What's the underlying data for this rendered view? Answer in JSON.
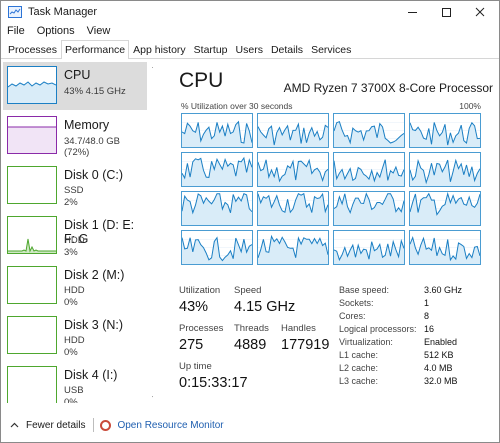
{
  "window": {
    "title": "Task Manager"
  },
  "menu": [
    "File",
    "Options",
    "View"
  ],
  "tabs": [
    "Processes",
    "Performance",
    "App history",
    "Startup",
    "Users",
    "Details",
    "Services"
  ],
  "active_tab": "Performance",
  "sidebar": {
    "items": [
      {
        "name": "CPU",
        "sub1": "43%  4.15 GHz",
        "sub2": "",
        "selected": true,
        "color": "#1b7fc4"
      },
      {
        "name": "Memory",
        "sub1": "34.7/48.0 GB (72%)",
        "sub2": "",
        "selected": false,
        "color": "#8a2aa8"
      },
      {
        "name": "Disk 0 (C:)",
        "sub1": "SSD",
        "sub2": "2%",
        "selected": false,
        "color": "#4ea72e"
      },
      {
        "name": "Disk 1 (D: E: F: G",
        "sub1": "HDD",
        "sub2": "3%",
        "selected": false,
        "color": "#4ea72e"
      },
      {
        "name": "Disk 2 (M:)",
        "sub1": "HDD",
        "sub2": "0%",
        "selected": false,
        "color": "#4ea72e"
      },
      {
        "name": "Disk 3 (N:)",
        "sub1": "HDD",
        "sub2": "0%",
        "selected": false,
        "color": "#4ea72e"
      },
      {
        "name": "Disk 4 (I:)",
        "sub1": "USB",
        "sub2": "0%",
        "selected": false,
        "color": "#4ea72e"
      }
    ]
  },
  "main": {
    "title": "CPU",
    "processor": "AMD Ryzen 7 3700X 8-Core Processor",
    "util_label": "% Utilization over 30 seconds",
    "util_max": "100%",
    "stats": {
      "utilization_label": "Utilization",
      "utilization": "43%",
      "speed_label": "Speed",
      "speed": "4.15 GHz",
      "processes_label": "Processes",
      "processes": "275",
      "threads_label": "Threads",
      "threads": "4889",
      "handles_label": "Handles",
      "handles": "177919",
      "uptime_label": "Up time",
      "uptime": "0:15:33:17"
    },
    "details": [
      {
        "label": "Base speed:",
        "value": "3.60 GHz"
      },
      {
        "label": "Sockets:",
        "value": "1"
      },
      {
        "label": "Cores:",
        "value": "8"
      },
      {
        "label": "Logical processors:",
        "value": "16"
      },
      {
        "label": "Virtualization:",
        "value": "Enabled"
      },
      {
        "label": "L1 cache:",
        "value": "512 KB"
      },
      {
        "label": "L2 cache:",
        "value": "4.0 MB"
      },
      {
        "label": "L3 cache:",
        "value": "32.0 MB"
      }
    ]
  },
  "footer": {
    "fewer_details": "Fewer details",
    "resource_monitor": "Open Resource Monitor"
  },
  "colors": {
    "cpu_line": "#1b7fc4",
    "cpu_fill": "#d9ecf8",
    "memory": "#8a2aa8",
    "disk": "#4ea72e"
  }
}
